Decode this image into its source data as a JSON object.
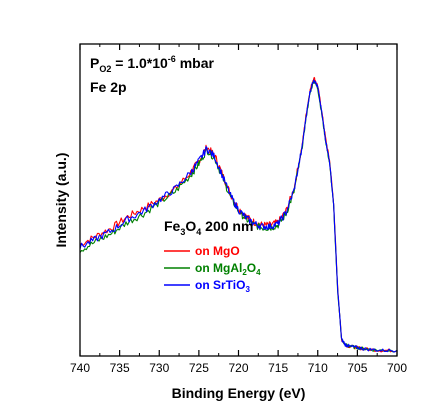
{
  "chart_data": {
    "type": "line",
    "xlabel": "Binding Energy (eV)",
    "ylabel": "Intensity (a.u.)",
    "xlim": [
      740,
      700
    ],
    "x_reversed": true,
    "ylim": [
      0,
      1.12
    ],
    "x_ticks": [
      740,
      735,
      730,
      725,
      720,
      715,
      710,
      705,
      700
    ],
    "y_ticks_shown": false,
    "grid": false,
    "annotations": [
      {
        "base": "P",
        "sub": "O2",
        "mid": " = 1.0*10",
        "sup": "-6",
        "rest": " mbar"
      },
      {
        "text": "Fe 2p"
      },
      {
        "base": "Fe",
        "sub1": "3",
        "mid": "O",
        "sub2": "4",
        "rest": " 200 nm"
      }
    ],
    "legend_position": "center-left",
    "series": [
      {
        "name": "on MgO",
        "label_parts": {
          "base": "on MgO"
        },
        "color": "#ff0000",
        "x": [
          740,
          738,
          736,
          734,
          732,
          730,
          728,
          726,
          725,
          724,
          723,
          722,
          721,
          720,
          719,
          718,
          717,
          716,
          715,
          714,
          713,
          712,
          711.5,
          711,
          710.5,
          710,
          709.5,
          709,
          708.5,
          708,
          707.5,
          707,
          706.5,
          706,
          705,
          704,
          702,
          700
        ],
        "y": [
          0.4,
          0.43,
          0.46,
          0.5,
          0.53,
          0.56,
          0.6,
          0.66,
          0.7,
          0.75,
          0.72,
          0.65,
          0.58,
          0.53,
          0.5,
          0.48,
          0.47,
          0.47,
          0.48,
          0.52,
          0.6,
          0.75,
          0.86,
          0.95,
          1.0,
          0.97,
          0.88,
          0.78,
          0.7,
          0.55,
          0.25,
          0.06,
          0.04,
          0.035,
          0.03,
          0.025,
          0.02,
          0.02
        ]
      },
      {
        "name": "on MgAl2O4",
        "label_parts": {
          "base": "on MgAl",
          "sub1": "2",
          "mid": "O",
          "sub2": "4"
        },
        "color": "#008000",
        "x": [
          740,
          738,
          736,
          734,
          732,
          730,
          728,
          726,
          725,
          724,
          723,
          722,
          721,
          720,
          719,
          718,
          717,
          716,
          715,
          714,
          713,
          712,
          711.5,
          711,
          710.5,
          710,
          709.5,
          709,
          708.5,
          708,
          707.5,
          707,
          706.5,
          706,
          705,
          704,
          702,
          700
        ],
        "y": [
          0.38,
          0.41,
          0.44,
          0.48,
          0.51,
          0.55,
          0.59,
          0.65,
          0.69,
          0.74,
          0.71,
          0.64,
          0.57,
          0.52,
          0.49,
          0.47,
          0.46,
          0.46,
          0.47,
          0.51,
          0.59,
          0.74,
          0.85,
          0.94,
          0.99,
          0.96,
          0.87,
          0.77,
          0.69,
          0.54,
          0.24,
          0.06,
          0.04,
          0.035,
          0.03,
          0.025,
          0.02,
          0.02
        ]
      },
      {
        "name": "on SrTiO3",
        "label_parts": {
          "base": "on SrTiO",
          "sub1": "3"
        },
        "color": "#0000ff",
        "x": [
          740,
          738,
          736,
          734,
          732,
          730,
          728,
          726,
          725,
          724,
          723,
          722,
          721,
          720,
          719,
          718,
          717,
          716,
          715,
          714,
          713,
          712,
          711.5,
          711,
          710.5,
          710,
          709.5,
          709,
          708.5,
          708,
          707.5,
          707,
          706.5,
          706,
          705,
          704,
          702,
          700
        ],
        "y": [
          0.39,
          0.42,
          0.45,
          0.49,
          0.52,
          0.56,
          0.6,
          0.66,
          0.7,
          0.745,
          0.715,
          0.645,
          0.575,
          0.525,
          0.495,
          0.475,
          0.465,
          0.465,
          0.475,
          0.515,
          0.595,
          0.745,
          0.855,
          0.945,
          0.995,
          0.965,
          0.875,
          0.775,
          0.695,
          0.545,
          0.245,
          0.06,
          0.04,
          0.035,
          0.03,
          0.025,
          0.02,
          0.02
        ]
      }
    ]
  }
}
